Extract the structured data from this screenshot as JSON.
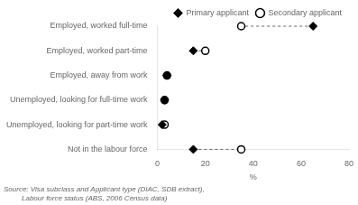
{
  "chart_data": {
    "type": "dot",
    "orientation": "horizontal",
    "categories": [
      "Employed, worked full-time",
      "Employed, worked part-time",
      "Employed, away from work",
      "Unemployed, looking for full-time work",
      "Unemployed, looking for part-time work",
      "Not in the labour force"
    ],
    "series": [
      {
        "name": "Primary applicant",
        "color": "#000000",
        "marker": "diamond",
        "values": [
          65,
          15,
          4,
          3,
          2,
          15
        ]
      },
      {
        "name": "Secondary applicant",
        "color": "#000000",
        "marker": "open_circle",
        "values": [
          35,
          20,
          4,
          3,
          3,
          35
        ]
      }
    ],
    "xlabel": "%",
    "xlim": [
      0,
      80
    ],
    "xticks": [
      0,
      20,
      40,
      60,
      80
    ],
    "grid": false,
    "legend": "top",
    "line_style": "dashed",
    "annotations": [
      "Source: Visa subclass and Applicant type (DIAC, SDB extract),",
      "         Labour force status (ABS, 2006 Census data)"
    ]
  }
}
